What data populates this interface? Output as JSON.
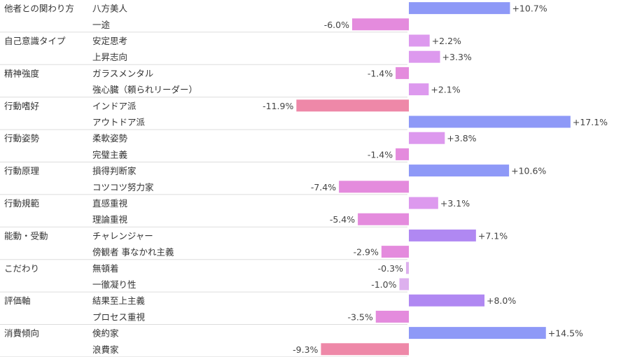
{
  "chart_data": {
    "type": "bar",
    "orientation": "horizontal-diverging",
    "colors": {
      "negative_strong": "#ee88a8",
      "negative_mid": "#e48bdd",
      "negative_light": "#ddb0ee",
      "positive_light": "#dd99ee",
      "positive_mid": "#b088f2",
      "positive_strong": "#8e99f7",
      "separator": "#dddddd"
    },
    "groups": [
      {
        "category": "他者との関わり方",
        "items": [
          {
            "label": "八方美人",
            "value": 10.7,
            "text": "+10.7%"
          },
          {
            "label": "一途",
            "value": -6.0,
            "text": "-6.0%"
          }
        ]
      },
      {
        "category": "自己意識タイプ",
        "items": [
          {
            "label": "安定思考",
            "value": 2.2,
            "text": "+2.2%"
          },
          {
            "label": "上昇志向",
            "value": 3.3,
            "text": "+3.3%"
          }
        ]
      },
      {
        "category": "精神強度",
        "items": [
          {
            "label": "ガラスメンタル",
            "value": -1.4,
            "text": "-1.4%"
          },
          {
            "label": "強心臓（頼られリーダー）",
            "value": 2.1,
            "text": "+2.1%"
          }
        ]
      },
      {
        "category": "行動嗜好",
        "items": [
          {
            "label": "インドア派",
            "value": -11.9,
            "text": "-11.9%"
          },
          {
            "label": "アウトドア派",
            "value": 17.1,
            "text": "+17.1%"
          }
        ]
      },
      {
        "category": "行動姿勢",
        "items": [
          {
            "label": "柔軟姿勢",
            "value": 3.8,
            "text": "+3.8%"
          },
          {
            "label": "完璧主義",
            "value": -1.4,
            "text": "-1.4%"
          }
        ]
      },
      {
        "category": "行動原理",
        "items": [
          {
            "label": "損得判断家",
            "value": 10.6,
            "text": "+10.6%"
          },
          {
            "label": "コツコツ努力家",
            "value": -7.4,
            "text": "-7.4%"
          }
        ]
      },
      {
        "category": "行動規範",
        "items": [
          {
            "label": "直感重視",
            "value": 3.1,
            "text": "+3.1%"
          },
          {
            "label": "理論重視",
            "value": -5.4,
            "text": "-5.4%"
          }
        ]
      },
      {
        "category": "能動・受動",
        "items": [
          {
            "label": "チャレンジャー",
            "value": 7.1,
            "text": "+7.1%"
          },
          {
            "label": "傍観者 事なかれ主義",
            "value": -2.9,
            "text": "-2.9%"
          }
        ]
      },
      {
        "category": "こだわり",
        "items": [
          {
            "label": "無頓着",
            "value": -0.3,
            "text": "-0.3%"
          },
          {
            "label": "一徹凝り性",
            "value": -1.0,
            "text": "-1.0%"
          }
        ]
      },
      {
        "category": "評価軸",
        "items": [
          {
            "label": "結果至上主義",
            "value": 8.0,
            "text": "+8.0%"
          },
          {
            "label": "プロセス重視",
            "value": -3.5,
            "text": "-3.5%"
          }
        ]
      },
      {
        "category": "消費傾向",
        "items": [
          {
            "label": "倹約家",
            "value": 14.5,
            "text": "+14.5%"
          },
          {
            "label": "浪費家",
            "value": -9.3,
            "text": "-9.3%"
          }
        ]
      }
    ]
  }
}
